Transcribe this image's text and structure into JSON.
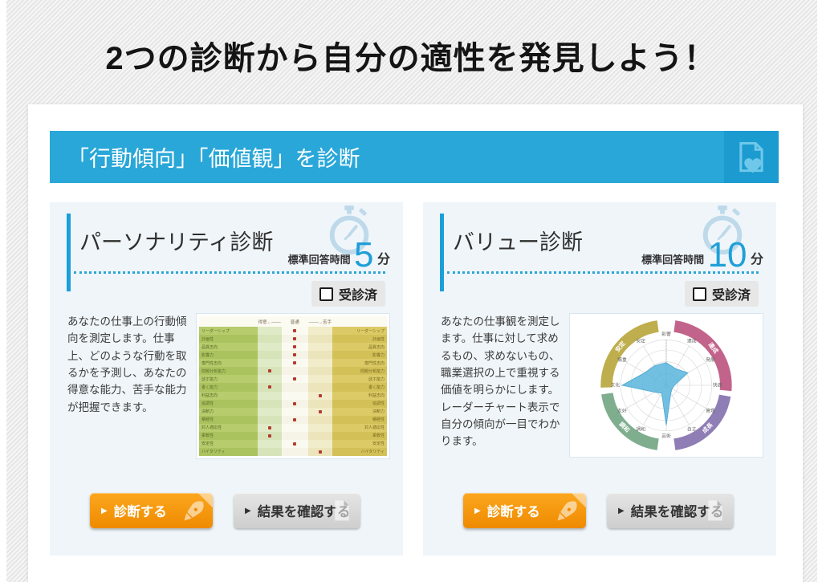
{
  "page": {
    "title": "2つの診断から自分の適性を発見しよう！"
  },
  "section": {
    "header": "「行動傾向」「価値観」を診断"
  },
  "colors": {
    "section_blue": "#29a7d8",
    "accent_blue": "#1b9fd8",
    "time_number_blue": "#1f9fd8",
    "orange_button": "#f18d00",
    "gray_button": "#d2d2d2",
    "card_background": "#eff5f9"
  },
  "cards": [
    {
      "title": "パーソナリティ診断",
      "time_label": "標準回答時間",
      "time_value": "5",
      "time_unit": "分",
      "checkbox_label": "受診済",
      "checkbox_checked": false,
      "description": "あなたの仕事上の行動傾向を測定します。仕事上、どのような行動を取るかを予測し、あなたの得意な能力、苦手な能力が把握できます。",
      "diagnose_button": "診断する",
      "results_button": "結果を確認する"
    },
    {
      "title": "バリュー診断",
      "time_label": "標準回答時間",
      "time_value": "10",
      "time_unit": "分",
      "checkbox_label": "受診済",
      "checkbox_checked": false,
      "description": "あなたの仕事観を測定します。仕事に対して求めるもの、求めないもの、職業選択の上で重視する価値を明らかにします。\nレーダーチャート表示で自分の傾向が一目でわかります。",
      "diagnose_button": "診断する",
      "results_button": "結果を確認する"
    }
  ],
  "chart_data": [
    {
      "type": "table",
      "name": "personality-result-thumbnail",
      "header": {
        "left": "得意",
        "center": "普通",
        "right": "苦手"
      },
      "rows": [
        {
          "label": "リーダーシップ",
          "dot": "center"
        },
        {
          "label": "計画性",
          "dot": "center"
        },
        {
          "label": "品質志向",
          "dot": "center"
        },
        {
          "label": "影響力",
          "dot": "center"
        },
        {
          "label": "専門性志向",
          "dot": "center"
        },
        {
          "label": "問題分析能力",
          "dot": "left"
        },
        {
          "label": "話す能力",
          "dot": "center"
        },
        {
          "label": "書く能力",
          "dot": "left"
        },
        {
          "label": "利益志向",
          "dot": "right"
        },
        {
          "label": "協調性",
          "dot": "center"
        },
        {
          "label": "決断力",
          "dot": "right"
        },
        {
          "label": "積極性",
          "dot": "center"
        },
        {
          "label": "対人適応性",
          "dot": "left"
        },
        {
          "label": "柔軟性",
          "dot": "left"
        },
        {
          "label": "安定性",
          "dot": "center"
        },
        {
          "label": "バイタリティ",
          "dot": "right"
        }
      ]
    },
    {
      "type": "radar",
      "name": "value-result-thumbnail",
      "axes": [
        "影響",
        "達成",
        "発展",
        "快適",
        "管理",
        "自主",
        "芸術",
        "調和",
        "友好",
        "文化",
        "慎重",
        "安定"
      ],
      "values": [
        0.5,
        0.42,
        0.55,
        0.18,
        0.15,
        0.2,
        0.88,
        0.2,
        0.3,
        0.97,
        0.55,
        0.5
      ],
      "ring_segments": [
        {
          "label": "達成",
          "color": "#c2638b",
          "start": 8,
          "end": 95
        },
        {
          "label": "成長",
          "color": "#8f7db5",
          "start": 100,
          "end": 172
        },
        {
          "label": "調和",
          "color": "#7fae8e",
          "start": 188,
          "end": 262
        },
        {
          "label": "安定",
          "color": "#bfae4e",
          "start": 268,
          "end": 352
        }
      ],
      "polygon_color": "#58b4dc"
    }
  ]
}
